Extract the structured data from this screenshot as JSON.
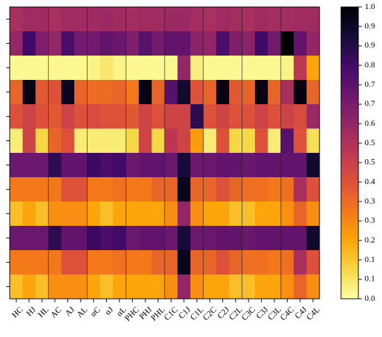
{
  "chart_data": {
    "type": "heatmap",
    "categories": [
      "HC",
      "HJ",
      "HL",
      "AC",
      "AJ",
      "AL",
      "αC",
      "αJ",
      "αL",
      "PHC",
      "PHJ",
      "PHL",
      "C1C",
      "C1J",
      "C1L",
      "C2C",
      "C2J",
      "C2L",
      "C3C",
      "C3J",
      "C3L",
      "C4C",
      "C4J",
      "C4L"
    ],
    "colormap": "inferno_r",
    "clim": [
      0,
      1
    ],
    "cticks": [
      {
        "value": 0,
        "label": "0.0"
      },
      {
        "value": 0.0667,
        "label": "0.1"
      },
      {
        "value": 0.1333,
        "label": "0.1"
      },
      0.2,
      {
        "value": 0.2667,
        "label": "0.3"
      },
      {
        "value": 0.3333,
        "label": "0.3"
      },
      0.4,
      {
        "value": 0.4667,
        "label": "0.5"
      },
      {
        "value": 0.5333,
        "label": "0.5"
      },
      0.6,
      {
        "value": 0.6667,
        "label": "0.7"
      },
      {
        "value": 0.7333,
        "label": "0.7"
      },
      0.8,
      {
        "value": 0.8667,
        "label": "0.9"
      },
      {
        "value": 0.9333,
        "label": "0.9"
      },
      {
        "value": 1,
        "label": "1.0"
      }
    ],
    "values": [
      [
        0.55,
        0.57,
        0.57,
        0.55,
        0.57,
        0.57,
        0.57,
        0.58,
        0.57,
        0.56,
        0.57,
        0.57,
        0.58,
        0.58,
        0.56,
        0.55,
        0.57,
        0.56,
        0.55,
        0.57,
        0.56,
        0.56,
        0.57,
        0.57
      ],
      [
        0.6,
        0.8,
        0.65,
        0.6,
        0.78,
        0.68,
        0.68,
        0.72,
        0.7,
        0.65,
        0.75,
        0.68,
        0.72,
        0.72,
        0.62,
        0.6,
        0.78,
        0.65,
        0.62,
        0.8,
        0.68,
        1.0,
        0.72,
        0.6
      ],
      [
        0.02,
        0.02,
        0.02,
        0.02,
        0.02,
        0.02,
        0.03,
        0.06,
        0.03,
        0.02,
        0.02,
        0.02,
        0.02,
        0.6,
        0.04,
        0.02,
        0.02,
        0.02,
        0.02,
        0.02,
        0.02,
        0.03,
        0.5,
        0.2
      ],
      [
        0.35,
        0.97,
        0.38,
        0.4,
        0.95,
        0.35,
        0.33,
        0.33,
        0.35,
        0.3,
        0.97,
        0.35,
        0.75,
        0.92,
        0.4,
        0.35,
        0.97,
        0.38,
        0.35,
        0.97,
        0.35,
        0.55,
        0.98,
        0.35
      ],
      [
        0.4,
        0.45,
        0.4,
        0.38,
        0.45,
        0.4,
        0.42,
        0.4,
        0.4,
        0.38,
        0.45,
        0.4,
        0.45,
        0.45,
        0.85,
        0.4,
        0.45,
        0.4,
        0.4,
        0.45,
        0.4,
        0.45,
        0.42,
        0.58
      ],
      [
        0.05,
        0.45,
        0.1,
        0.35,
        0.4,
        0.05,
        0.05,
        0.05,
        0.05,
        0.1,
        0.45,
        0.1,
        0.5,
        0.45,
        0.22,
        0.05,
        0.4,
        0.1,
        0.1,
        0.4,
        0.05,
        0.75,
        0.4,
        0.08
      ],
      [
        0.7,
        0.7,
        0.7,
        0.85,
        0.72,
        0.72,
        0.82,
        0.78,
        0.8,
        0.7,
        0.72,
        0.72,
        0.7,
        0.9,
        0.7,
        0.7,
        0.72,
        0.72,
        0.7,
        0.72,
        0.72,
        0.72,
        0.72,
        0.92
      ],
      [
        0.3,
        0.3,
        0.3,
        0.3,
        0.4,
        0.4,
        0.3,
        0.3,
        0.32,
        0.3,
        0.3,
        0.35,
        0.35,
        0.95,
        0.35,
        0.35,
        0.4,
        0.35,
        0.32,
        0.32,
        0.3,
        0.32,
        0.55,
        0.4
      ],
      [
        0.15,
        0.2,
        0.15,
        0.25,
        0.25,
        0.25,
        0.2,
        0.15,
        0.2,
        0.2,
        0.2,
        0.2,
        0.25,
        0.6,
        0.25,
        0.2,
        0.2,
        0.15,
        0.15,
        0.2,
        0.2,
        0.25,
        0.35,
        0.25
      ],
      [
        0.7,
        0.7,
        0.7,
        0.85,
        0.72,
        0.72,
        0.82,
        0.78,
        0.8,
        0.7,
        0.72,
        0.72,
        0.7,
        0.9,
        0.7,
        0.7,
        0.72,
        0.72,
        0.7,
        0.72,
        0.72,
        0.72,
        0.72,
        0.92
      ],
      [
        0.3,
        0.3,
        0.3,
        0.3,
        0.4,
        0.4,
        0.3,
        0.3,
        0.32,
        0.3,
        0.3,
        0.35,
        0.35,
        0.95,
        0.35,
        0.35,
        0.4,
        0.35,
        0.32,
        0.32,
        0.3,
        0.32,
        0.55,
        0.4
      ],
      [
        0.15,
        0.2,
        0.15,
        0.25,
        0.25,
        0.25,
        0.2,
        0.15,
        0.2,
        0.2,
        0.2,
        0.2,
        0.25,
        0.6,
        0.25,
        0.2,
        0.2,
        0.15,
        0.15,
        0.2,
        0.2,
        0.25,
        0.35,
        0.25
      ]
    ]
  }
}
